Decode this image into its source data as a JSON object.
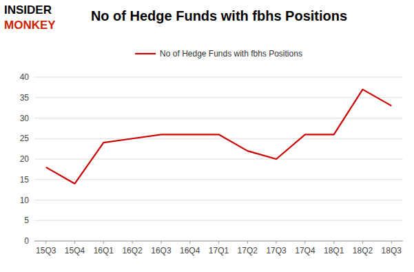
{
  "chart_data": {
    "type": "line",
    "title": "No of Hedge Funds with fbhs Positions",
    "categories": [
      "15Q3",
      "15Q4",
      "16Q1",
      "16Q2",
      "16Q3",
      "16Q4",
      "17Q1",
      "17Q2",
      "17Q3",
      "17Q4",
      "18Q1",
      "18Q2",
      "18Q3"
    ],
    "series": [
      {
        "name": "No of Hedge Funds with fbhs Positions",
        "color": "#cc0000",
        "values": [
          18,
          14,
          24,
          25,
          26,
          26,
          26,
          22,
          20,
          26,
          26,
          37,
          33
        ]
      }
    ],
    "ylim": [
      0,
      40
    ],
    "yticks": [
      0,
      5,
      10,
      15,
      20,
      25,
      30,
      35,
      40
    ],
    "grid": true,
    "legend": "top",
    "annotations": [
      {
        "text": "INSIDER",
        "color": "#000000"
      },
      {
        "text": "MONKEY",
        "color": "#cc2200"
      }
    ]
  }
}
